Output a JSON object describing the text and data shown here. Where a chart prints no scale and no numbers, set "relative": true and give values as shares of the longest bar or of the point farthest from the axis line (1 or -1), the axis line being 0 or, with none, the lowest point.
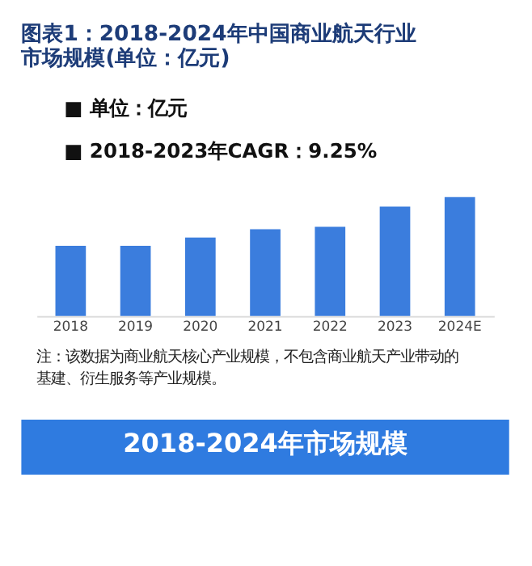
{
  "chart_data": {
    "type": "bar",
    "title": "图表1：2018-2024年中国商业航天行业市场规模(单位：亿元)",
    "categories": [
      "2018",
      "2019",
      "2020",
      "2021",
      "2022",
      "2023",
      "2024E"
    ],
    "values": [
      0.59,
      0.59,
      0.66,
      0.73,
      0.75,
      0.92,
      1
    ],
    "color": "#3b7ddd",
    "relative": true,
    "grid": false,
    "annotations": [
      "■  单位：亿元",
      "■  2018-2023年CAGR：9.25%",
      "注：该数据为商业航天核心产业规模，不包含商业航天产业带动的基建、衍生服务等产业规模。",
      "2018-2024年市场规模"
    ]
  }
}
